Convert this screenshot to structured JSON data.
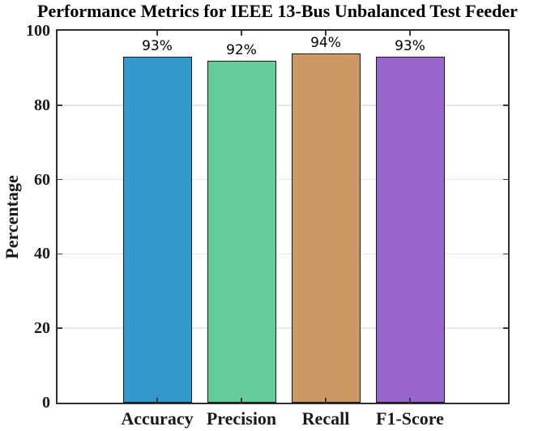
{
  "figure": {
    "background": "#ffffff"
  },
  "chart_data": {
    "type": "bar",
    "title": "Performance Metrics for IEEE 13-Bus Unbalanced Test Feeder",
    "xlabel": "",
    "ylabel": "Percentage",
    "categories": [
      "Accuracy",
      "Precision",
      "Recall",
      "F1-Score"
    ],
    "values": [
      93,
      92,
      94,
      93
    ],
    "bar_value_labels": [
      "93%",
      "92%",
      "94%",
      "93%"
    ],
    "bar_colors": [
      "#3399cc",
      "#66cc99",
      "#cc9966",
      "#9966cc"
    ],
    "bar_edge_color": "#1a1a1a",
    "ylim": [
      0,
      100
    ],
    "yticks": [
      "0",
      "20",
      "40",
      "60",
      "80",
      "100"
    ],
    "grid": "horizontal",
    "gridline_color": "#e6e6e6",
    "axis_color": "#2e2e2e",
    "tick_direction": "in",
    "legend": "none"
  }
}
